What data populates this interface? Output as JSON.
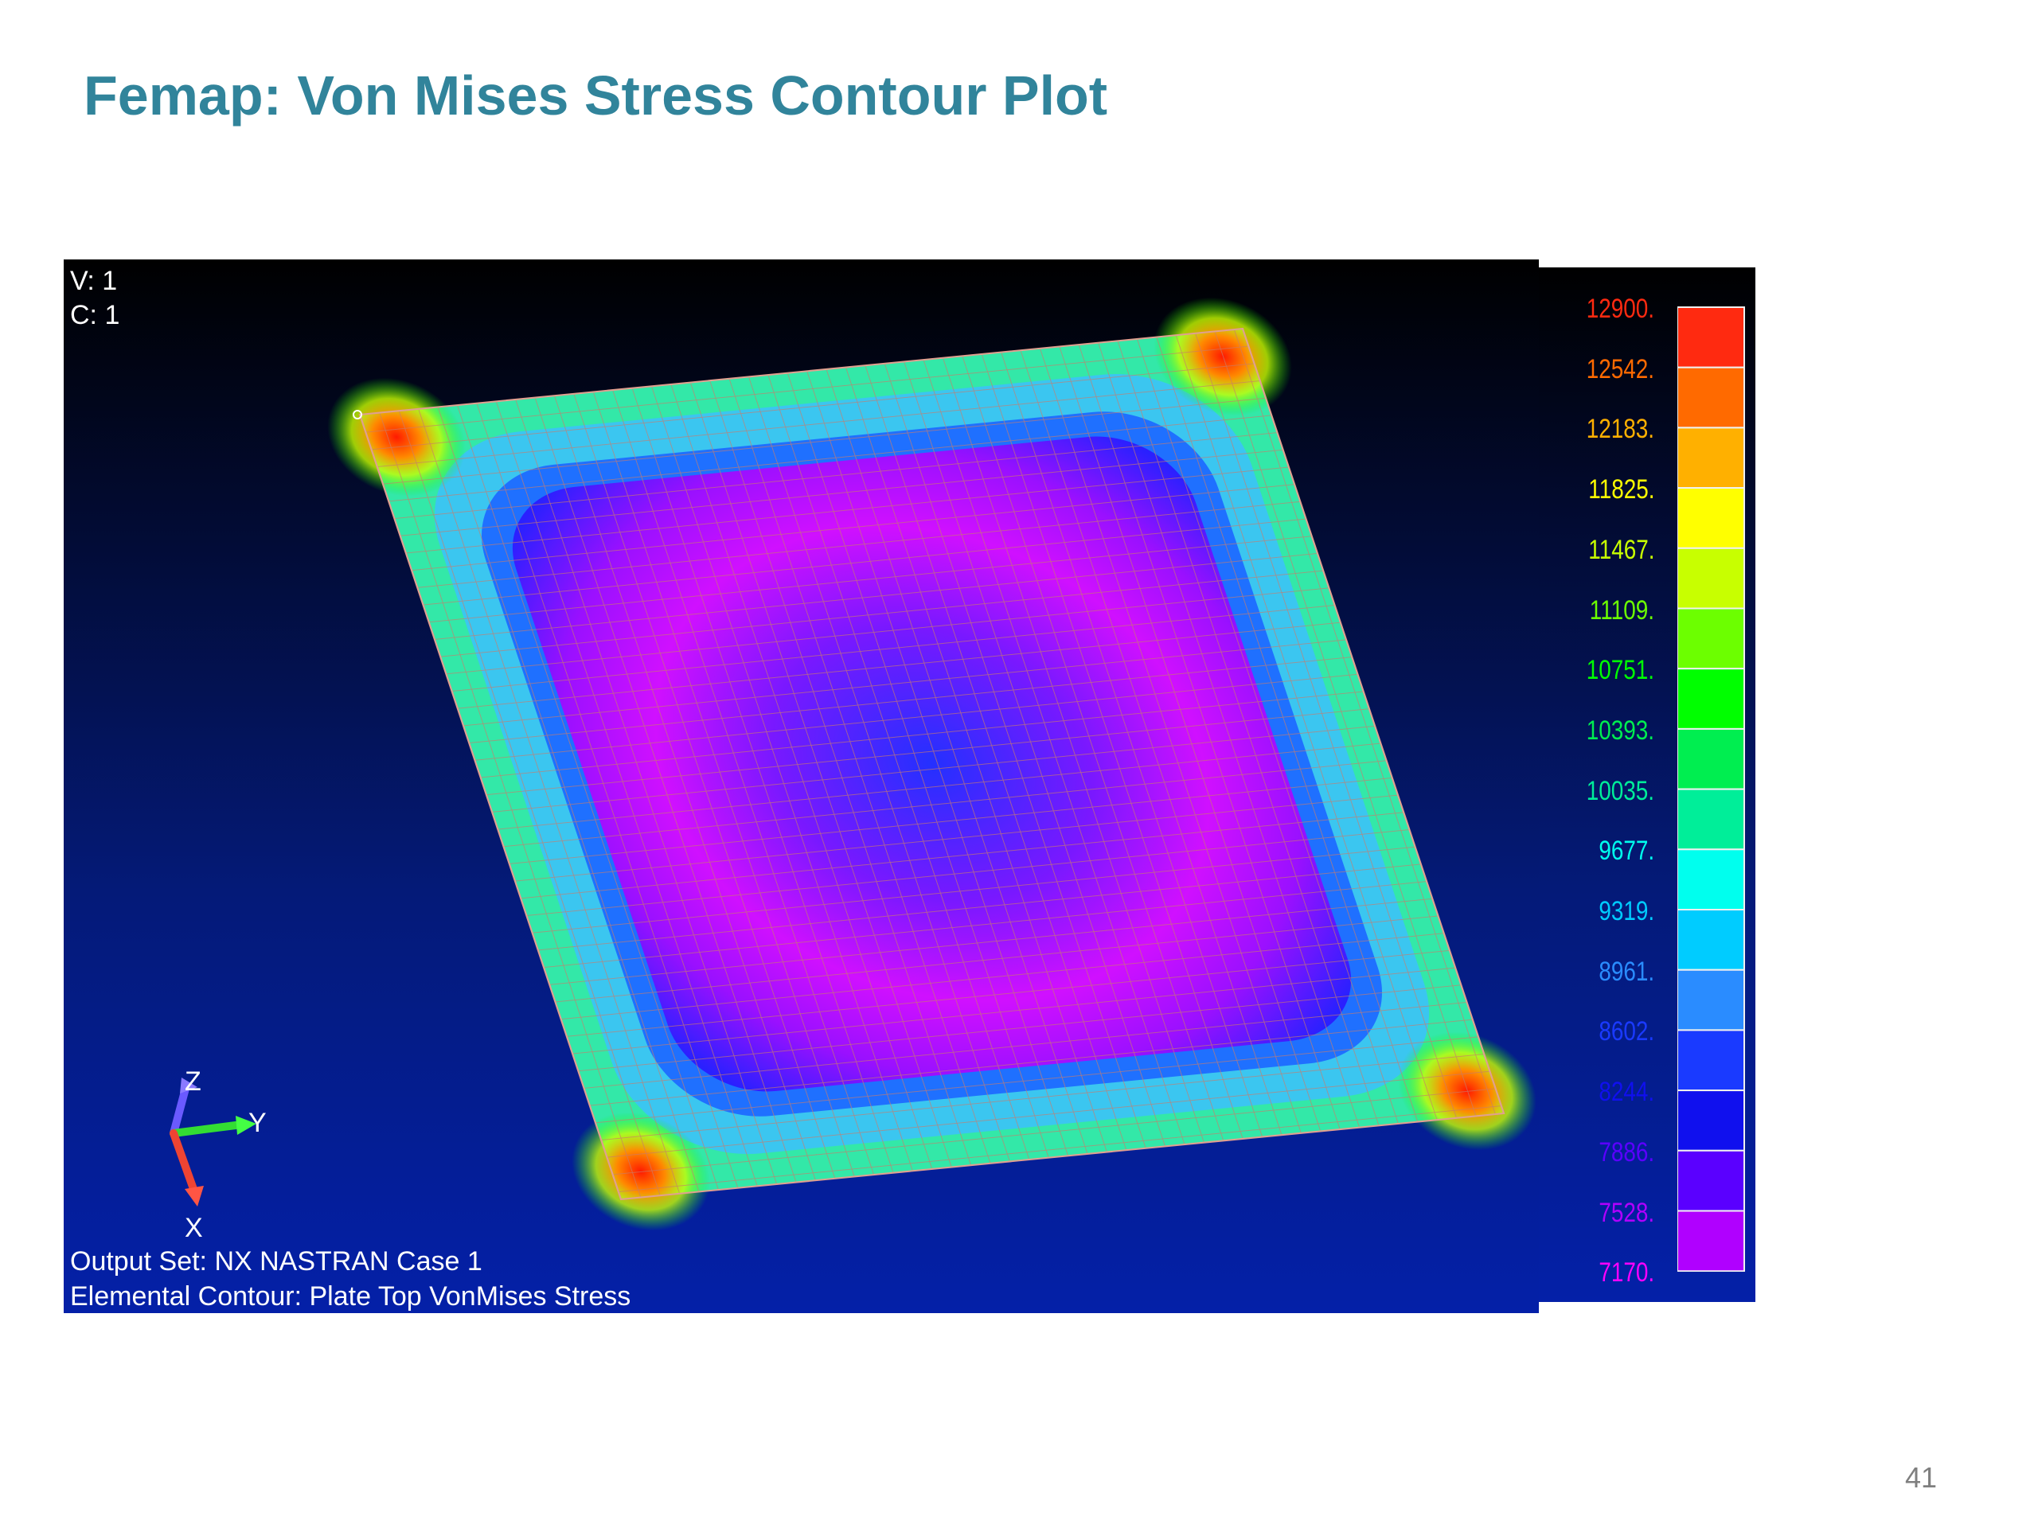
{
  "slide": {
    "title": "Femap:  Von Mises Stress Contour Plot",
    "page_number": "41"
  },
  "viewport": {
    "view_label": "V: 1",
    "case_label": "C: 1",
    "output_set": "Output Set: NX NASTRAN Case 1",
    "contour_desc": "Elemental Contour: Plate Top VonMises Stress",
    "triad": {
      "z": "Z",
      "y": "Y",
      "x": "X"
    }
  },
  "legend": {
    "levels": [
      {
        "label": "12900.",
        "color": "#ff2a10"
      },
      {
        "label": "12542.",
        "color": "#ff6a00"
      },
      {
        "label": "12183.",
        "color": "#ffb000"
      },
      {
        "label": "11825.",
        "color": "#ffff00"
      },
      {
        "label": "11467.",
        "color": "#c8ff00"
      },
      {
        "label": "11109.",
        "color": "#6cff00"
      },
      {
        "label": "10751.",
        "color": "#00ff00"
      },
      {
        "label": "10393.",
        "color": "#00ee50"
      },
      {
        "label": "10035.",
        "color": "#00ee99"
      },
      {
        "label": "9677.",
        "color": "#00ffee"
      },
      {
        "label": "9319.",
        "color": "#00ccff"
      },
      {
        "label": "8961.",
        "color": "#2a8cff"
      },
      {
        "label": "8602.",
        "color": "#1a3aff"
      },
      {
        "label": "8244.",
        "color": "#1010ee"
      },
      {
        "label": "7886.",
        "color": "#5a00ff"
      },
      {
        "label": "7528.",
        "color": "#b000ff"
      },
      {
        "label": "7170.",
        "color": "#ff00ff"
      }
    ]
  }
}
